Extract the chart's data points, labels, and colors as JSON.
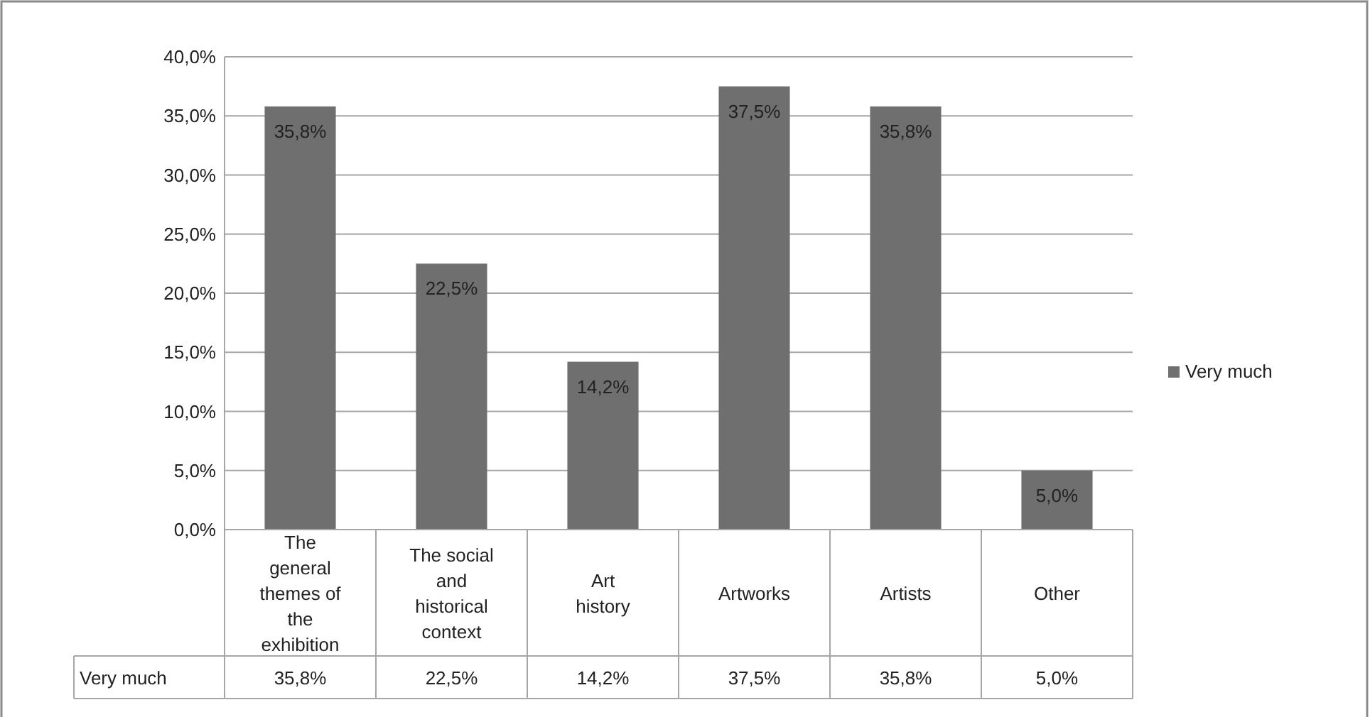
{
  "chart_data": {
    "type": "bar",
    "categories": [
      "The general themes of the exhibition",
      "The social and historical context",
      "Art history",
      "Artworks",
      "Artists",
      "Other"
    ],
    "series": [
      {
        "name": "Very much",
        "color": "#6f6f6f",
        "values": [
          35.8,
          22.5,
          14.2,
          37.5,
          35.8,
          5.0
        ],
        "value_labels": [
          "35,8%",
          "22,5%",
          "14,2%",
          "37,5%",
          "35,8%",
          "5,0%"
        ]
      }
    ],
    "ylim": [
      0,
      40
    ],
    "yticks": [
      {
        "value": 0,
        "label": "0,0%"
      },
      {
        "value": 5,
        "label": "5,0%"
      },
      {
        "value": 10,
        "label": "10,0%"
      },
      {
        "value": 15,
        "label": "15,0%"
      },
      {
        "value": 20,
        "label": "20,0%"
      },
      {
        "value": 25,
        "label": "25,0%"
      },
      {
        "value": 30,
        "label": "30,0%"
      },
      {
        "value": 35,
        "label": "35,0%"
      },
      {
        "value": 40,
        "label": "40,0%"
      }
    ],
    "grid": "y",
    "legend": "right"
  }
}
